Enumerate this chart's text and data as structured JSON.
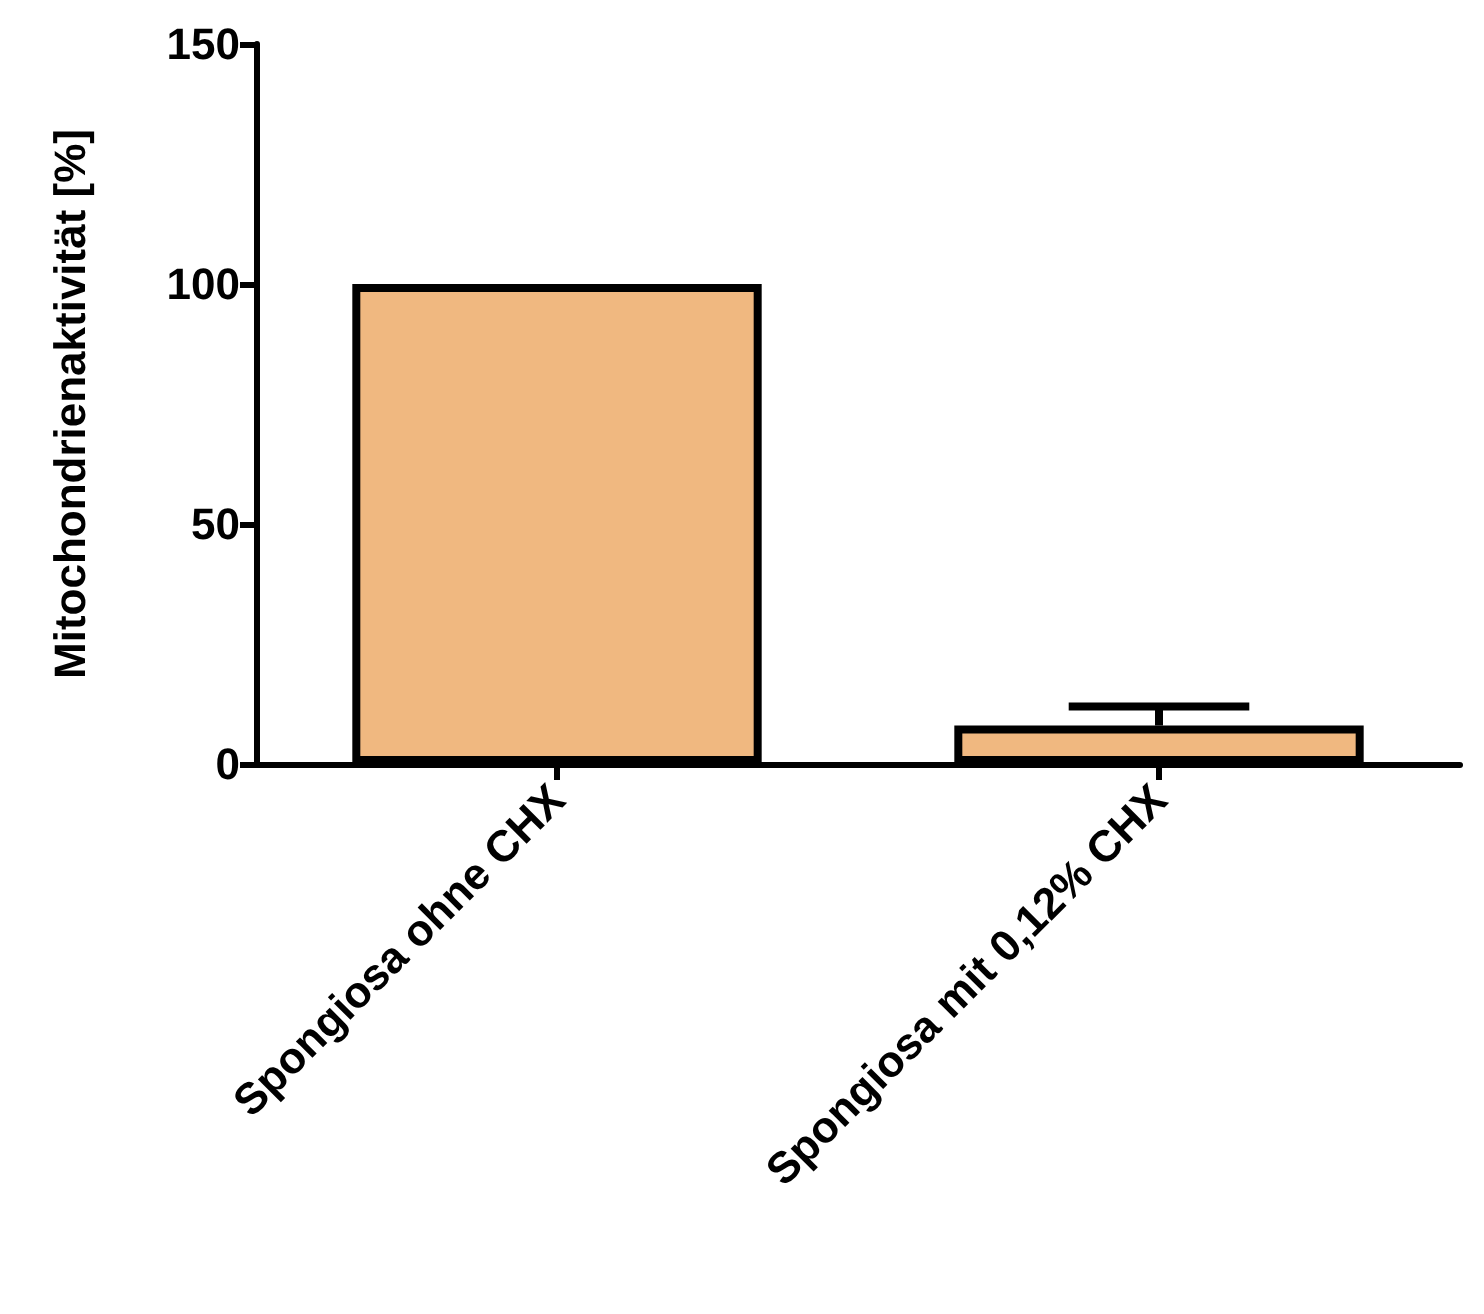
{
  "chart_data": {
    "type": "bar",
    "ylabel": "Mitochondrienaktivität [%]",
    "categories": [
      "Spongiosa ohne CHX",
      "Spongiosa mit 0,12% CHX"
    ],
    "values": [
      100,
      8
    ],
    "errors": [
      null,
      [
        8,
        12
      ]
    ],
    "color": "#f0b880",
    "ylim": [
      0,
      150
    ],
    "yticks": [
      0,
      50,
      100,
      150
    ],
    "grid": false
  }
}
